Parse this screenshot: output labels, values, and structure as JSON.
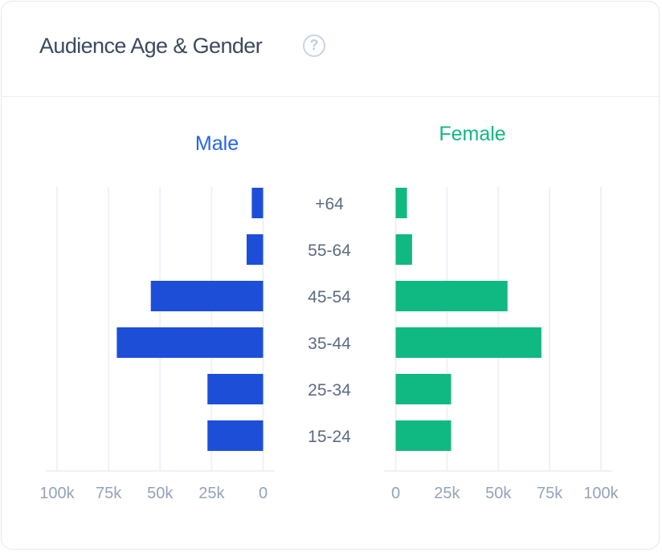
{
  "header": {
    "title": "Audience Age & Gender",
    "help_icon": "question-circle-icon"
  },
  "colors": {
    "male": "#1d4ed8",
    "female": "#10b981",
    "male_title": "#2563eb",
    "female_title": "#10b981",
    "grid": "#eef1f6"
  },
  "chart_data": {
    "type": "bar",
    "orientation": "horizontal-population-pyramid",
    "title": "Audience Age & Gender",
    "categories": [
      "+64",
      "55-64",
      "45-54",
      "35-44",
      "25-34",
      "15-24"
    ],
    "series": [
      {
        "name": "Male",
        "values": [
          5500,
          8000,
          54500,
          71000,
          27000,
          27000
        ]
      },
      {
        "name": "Female",
        "values": [
          5500,
          8000,
          54500,
          71000,
          27000,
          27000
        ]
      }
    ],
    "xlim": [
      0,
      100000
    ],
    "male_ticks": [
      "100k",
      "75k",
      "50k",
      "25k",
      "0"
    ],
    "female_ticks": [
      "0",
      "25k",
      "50k",
      "75k",
      "100k"
    ],
    "tick_values": [
      0,
      25000,
      50000,
      75000,
      100000
    ],
    "grid": true,
    "legend": "top-titles"
  }
}
